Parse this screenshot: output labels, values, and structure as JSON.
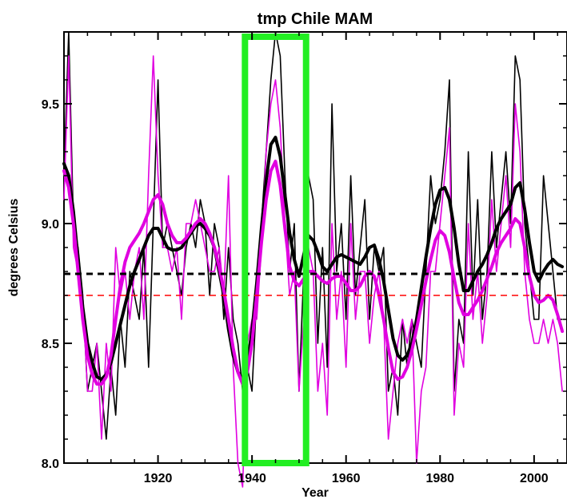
{
  "chart_data": {
    "type": "line",
    "title": "tmp Chile MAM",
    "xlabel": "Year",
    "ylabel": "degrees Celsius",
    "xlim": [
      1900,
      2007
    ],
    "ylim": [
      8.0,
      9.8
    ],
    "x_ticks": [
      1920,
      1940,
      1960,
      1980,
      2000
    ],
    "y_ticks": [
      8.0,
      8.5,
      9.0,
      9.5
    ],
    "y_tick_labels": [
      "8.0",
      "8.5",
      "9.0",
      "9.5"
    ],
    "grid": false,
    "colors": {
      "black_series": "#000000",
      "magenta_series": "#e000e0",
      "dashed_black": "#000000",
      "dashed_red": "#ff0000",
      "highlight_box": "#22ee22"
    },
    "series": [
      {
        "style": "annual",
        "color": "#000000",
        "x": [
          1900,
          1901,
          1902,
          1903,
          1904,
          1905,
          1906,
          1907,
          1908,
          1909,
          1910,
          1911,
          1912,
          1913,
          1914,
          1915,
          1916,
          1917,
          1918,
          1919,
          1920,
          1921,
          1922,
          1923,
          1924,
          1925,
          1926,
          1927,
          1928,
          1929,
          1930,
          1931,
          1932,
          1933,
          1934,
          1935,
          1936,
          1937,
          1938,
          1939,
          1940,
          1941,
          1942,
          1943,
          1944,
          1945,
          1946,
          1947,
          1948,
          1949,
          1950,
          1951,
          1952,
          1953,
          1954,
          1955,
          1956,
          1957,
          1958,
          1959,
          1960,
          1961,
          1962,
          1963,
          1964,
          1965,
          1966,
          1967,
          1968,
          1969,
          1970,
          1971,
          1972,
          1973,
          1974,
          1975,
          1976,
          1977,
          1978,
          1979,
          1980,
          1981,
          1982,
          1983,
          1984,
          1985,
          1986,
          1987,
          1988,
          1989,
          1990,
          1991,
          1992,
          1993,
          1994,
          1995,
          1996,
          1997,
          1998,
          1999,
          2000,
          2001,
          2002,
          2003,
          2004,
          2005,
          2006
        ],
        "values": [
          9.2,
          9.8,
          9.0,
          8.9,
          8.7,
          8.3,
          8.4,
          8.5,
          8.3,
          8.1,
          8.4,
          8.2,
          8.6,
          8.4,
          8.8,
          8.7,
          8.6,
          8.9,
          8.4,
          9.0,
          9.6,
          8.9,
          9.0,
          8.9,
          8.8,
          8.7,
          8.9,
          9.0,
          8.9,
          9.1,
          9.0,
          8.7,
          9.0,
          8.9,
          8.6,
          8.9,
          8.6,
          8.5,
          8.3,
          8.4,
          8.3,
          8.7,
          9.0,
          9.3,
          9.6,
          9.8,
          9.7,
          9.2,
          8.8,
          9.0,
          8.3,
          8.8,
          9.2,
          9.1,
          8.5,
          8.9,
          8.4,
          9.5,
          8.8,
          9.0,
          8.6,
          9.2,
          8.7,
          8.9,
          9.1,
          8.6,
          8.9,
          8.8,
          8.9,
          8.3,
          8.4,
          8.2,
          8.6,
          8.4,
          8.6,
          8.5,
          8.4,
          8.8,
          9.2,
          9.0,
          9.1,
          9.3,
          9.6,
          8.3,
          8.6,
          8.5,
          9.3,
          8.7,
          9.1,
          8.6,
          8.8,
          9.3,
          8.9,
          9.1,
          9.3,
          9.0,
          9.7,
          9.6,
          9.0,
          8.8,
          8.6,
          8.6,
          9.2,
          9.0,
          8.8,
          8.6,
          8.6
        ]
      },
      {
        "style": "annual",
        "color": "#e000e0",
        "x": [
          1900,
          1901,
          1902,
          1903,
          1904,
          1905,
          1906,
          1907,
          1908,
          1909,
          1910,
          1911,
          1912,
          1913,
          1914,
          1915,
          1916,
          1917,
          1918,
          1919,
          1920,
          1921,
          1922,
          1923,
          1924,
          1925,
          1926,
          1927,
          1928,
          1929,
          1930,
          1931,
          1932,
          1933,
          1934,
          1935,
          1936,
          1937,
          1938,
          1939,
          1940,
          1941,
          1942,
          1943,
          1944,
          1945,
          1946,
          1947,
          1948,
          1949,
          1950,
          1951,
          1952,
          1953,
          1954,
          1955,
          1956,
          1957,
          1958,
          1959,
          1960,
          1961,
          1962,
          1963,
          1964,
          1965,
          1966,
          1967,
          1968,
          1969,
          1970,
          1971,
          1972,
          1973,
          1974,
          1975,
          1976,
          1977,
          1978,
          1979,
          1980,
          1981,
          1982,
          1983,
          1984,
          1985,
          1986,
          1987,
          1988,
          1989,
          1990,
          1991,
          1992,
          1993,
          1994,
          1995,
          1996,
          1997,
          1998,
          1999,
          2000,
          2001,
          2002,
          2003,
          2004,
          2005,
          2006
        ],
        "values": [
          9.1,
          9.7,
          8.9,
          8.8,
          8.7,
          8.3,
          8.3,
          8.5,
          8.1,
          8.5,
          8.3,
          8.9,
          8.7,
          8.8,
          8.6,
          8.8,
          8.9,
          8.6,
          9.2,
          9.7,
          9.2,
          8.9,
          8.9,
          8.8,
          8.9,
          8.6,
          9.0,
          9.0,
          9.1,
          9.0,
          8.9,
          8.8,
          8.8,
          8.9,
          8.7,
          9.2,
          8.4,
          8.0,
          7.9,
          8.5,
          8.6,
          8.6,
          8.9,
          9.3,
          9.5,
          9.6,
          9.4,
          9.0,
          8.7,
          8.8,
          8.3,
          8.6,
          8.9,
          8.8,
          8.3,
          8.5,
          8.2,
          9.0,
          8.6,
          8.8,
          8.4,
          9.0,
          8.6,
          8.8,
          8.8,
          8.5,
          8.7,
          8.8,
          8.6,
          8.1,
          8.3,
          8.5,
          8.6,
          8.5,
          8.6,
          8.0,
          8.3,
          8.4,
          8.8,
          8.8,
          9.0,
          9.2,
          9.4,
          8.2,
          8.5,
          8.4,
          9.0,
          8.6,
          8.8,
          8.5,
          8.7,
          9.1,
          8.8,
          9.0,
          9.2,
          8.9,
          9.5,
          9.3,
          8.8,
          8.6,
          8.5,
          8.5,
          8.6,
          8.5,
          8.6,
          8.5,
          8.3
        ]
      },
      {
        "style": "smoothed",
        "color": "#000000",
        "x": [
          1900,
          1901,
          1902,
          1903,
          1904,
          1905,
          1906,
          1907,
          1908,
          1909,
          1910,
          1911,
          1912,
          1913,
          1914,
          1915,
          1916,
          1917,
          1918,
          1919,
          1920,
          1921,
          1922,
          1923,
          1924,
          1925,
          1926,
          1927,
          1928,
          1929,
          1930,
          1931,
          1932,
          1933,
          1934,
          1935,
          1936,
          1937,
          1938,
          1939,
          1940,
          1941,
          1942,
          1943,
          1944,
          1945,
          1946,
          1947,
          1948,
          1949,
          1950,
          1951,
          1952,
          1953,
          1954,
          1955,
          1956,
          1957,
          1958,
          1959,
          1960,
          1961,
          1962,
          1963,
          1964,
          1965,
          1966,
          1967,
          1968,
          1969,
          1970,
          1971,
          1972,
          1973,
          1974,
          1975,
          1976,
          1977,
          1978,
          1979,
          1980,
          1981,
          1982,
          1983,
          1984,
          1985,
          1986,
          1987,
          1988,
          1989,
          1990,
          1991,
          1992,
          1993,
          1994,
          1995,
          1996,
          1997,
          1998,
          1999,
          2000,
          2001,
          2002,
          2003,
          2004,
          2005,
          2006
        ],
        "values": [
          9.25,
          9.2,
          9.05,
          8.85,
          8.65,
          8.5,
          8.42,
          8.36,
          8.35,
          8.37,
          8.42,
          8.5,
          8.58,
          8.66,
          8.74,
          8.8,
          8.85,
          8.9,
          8.95,
          8.98,
          8.98,
          8.94,
          8.9,
          8.89,
          8.89,
          8.9,
          8.93,
          8.96,
          8.99,
          9.0,
          8.98,
          8.95,
          8.9,
          8.8,
          8.7,
          8.56,
          8.45,
          8.38,
          8.35,
          8.42,
          8.55,
          8.75,
          8.98,
          9.18,
          9.33,
          9.36,
          9.28,
          9.12,
          8.96,
          8.85,
          8.78,
          8.87,
          8.95,
          8.93,
          8.88,
          8.82,
          8.8,
          8.83,
          8.86,
          8.87,
          8.86,
          8.85,
          8.84,
          8.83,
          8.86,
          8.9,
          8.91,
          8.85,
          8.76,
          8.64,
          8.52,
          8.45,
          8.43,
          8.45,
          8.5,
          8.6,
          8.73,
          8.86,
          8.98,
          9.08,
          9.14,
          9.15,
          9.1,
          8.98,
          8.83,
          8.72,
          8.72,
          8.76,
          8.8,
          8.83,
          8.87,
          8.92,
          8.98,
          9.02,
          9.05,
          9.08,
          9.15,
          9.17,
          9.06,
          8.92,
          8.8,
          8.76,
          8.8,
          8.83,
          8.85,
          8.83,
          8.82
        ]
      },
      {
        "style": "smoothed",
        "color": "#e000e0",
        "x": [
          1900,
          1901,
          1902,
          1903,
          1904,
          1905,
          1906,
          1907,
          1908,
          1909,
          1910,
          1911,
          1912,
          1913,
          1914,
          1915,
          1916,
          1917,
          1918,
          1919,
          1920,
          1921,
          1922,
          1923,
          1924,
          1925,
          1926,
          1927,
          1928,
          1929,
          1930,
          1931,
          1932,
          1933,
          1934,
          1935,
          1936,
          1937,
          1938,
          1939,
          1940,
          1941,
          1942,
          1943,
          1944,
          1945,
          1946,
          1947,
          1948,
          1949,
          1950,
          1951,
          1952,
          1953,
          1954,
          1955,
          1956,
          1957,
          1958,
          1959,
          1960,
          1961,
          1962,
          1963,
          1964,
          1965,
          1966,
          1967,
          1968,
          1969,
          1970,
          1971,
          1972,
          1973,
          1974,
          1975,
          1976,
          1977,
          1978,
          1979,
          1980,
          1981,
          1982,
          1983,
          1984,
          1985,
          1986,
          1987,
          1988,
          1989,
          1990,
          1991,
          1992,
          1993,
          1994,
          1995,
          1996,
          1997,
          1998,
          1999,
          2000,
          2001,
          2002,
          2003,
          2004,
          2005,
          2006
        ],
        "values": [
          9.22,
          9.15,
          9.0,
          8.8,
          8.6,
          8.45,
          8.37,
          8.33,
          8.33,
          8.36,
          8.45,
          8.6,
          8.74,
          8.84,
          8.9,
          8.93,
          8.96,
          9.0,
          9.05,
          9.1,
          9.12,
          9.08,
          9.0,
          8.95,
          8.92,
          8.92,
          8.94,
          8.97,
          9.0,
          9.02,
          9.0,
          8.96,
          8.9,
          8.82,
          8.72,
          8.6,
          8.48,
          8.38,
          8.33,
          8.38,
          8.5,
          8.7,
          8.92,
          9.1,
          9.22,
          9.26,
          9.16,
          8.98,
          8.82,
          8.76,
          8.74,
          8.77,
          8.8,
          8.8,
          8.78,
          8.76,
          8.75,
          8.77,
          8.78,
          8.78,
          8.75,
          8.72,
          8.72,
          8.74,
          8.78,
          8.8,
          8.78,
          8.7,
          8.6,
          8.48,
          8.38,
          8.35,
          8.36,
          8.4,
          8.47,
          8.56,
          8.66,
          8.76,
          8.85,
          8.93,
          8.97,
          8.95,
          8.88,
          8.77,
          8.67,
          8.62,
          8.62,
          8.65,
          8.68,
          8.72,
          8.77,
          8.82,
          8.88,
          8.92,
          8.95,
          8.98,
          9.02,
          9.0,
          8.9,
          8.78,
          8.7,
          8.67,
          8.68,
          8.7,
          8.68,
          8.62,
          8.55
        ]
      }
    ],
    "reference_lines": [
      {
        "y": 8.79,
        "color": "#000000",
        "style": "dashed"
      },
      {
        "y": 8.7,
        "color": "#ff0000",
        "style": "dashed"
      }
    ],
    "highlight": {
      "x_range": [
        1938.5,
        1951.5
      ],
      "color": "#22ee22"
    }
  }
}
